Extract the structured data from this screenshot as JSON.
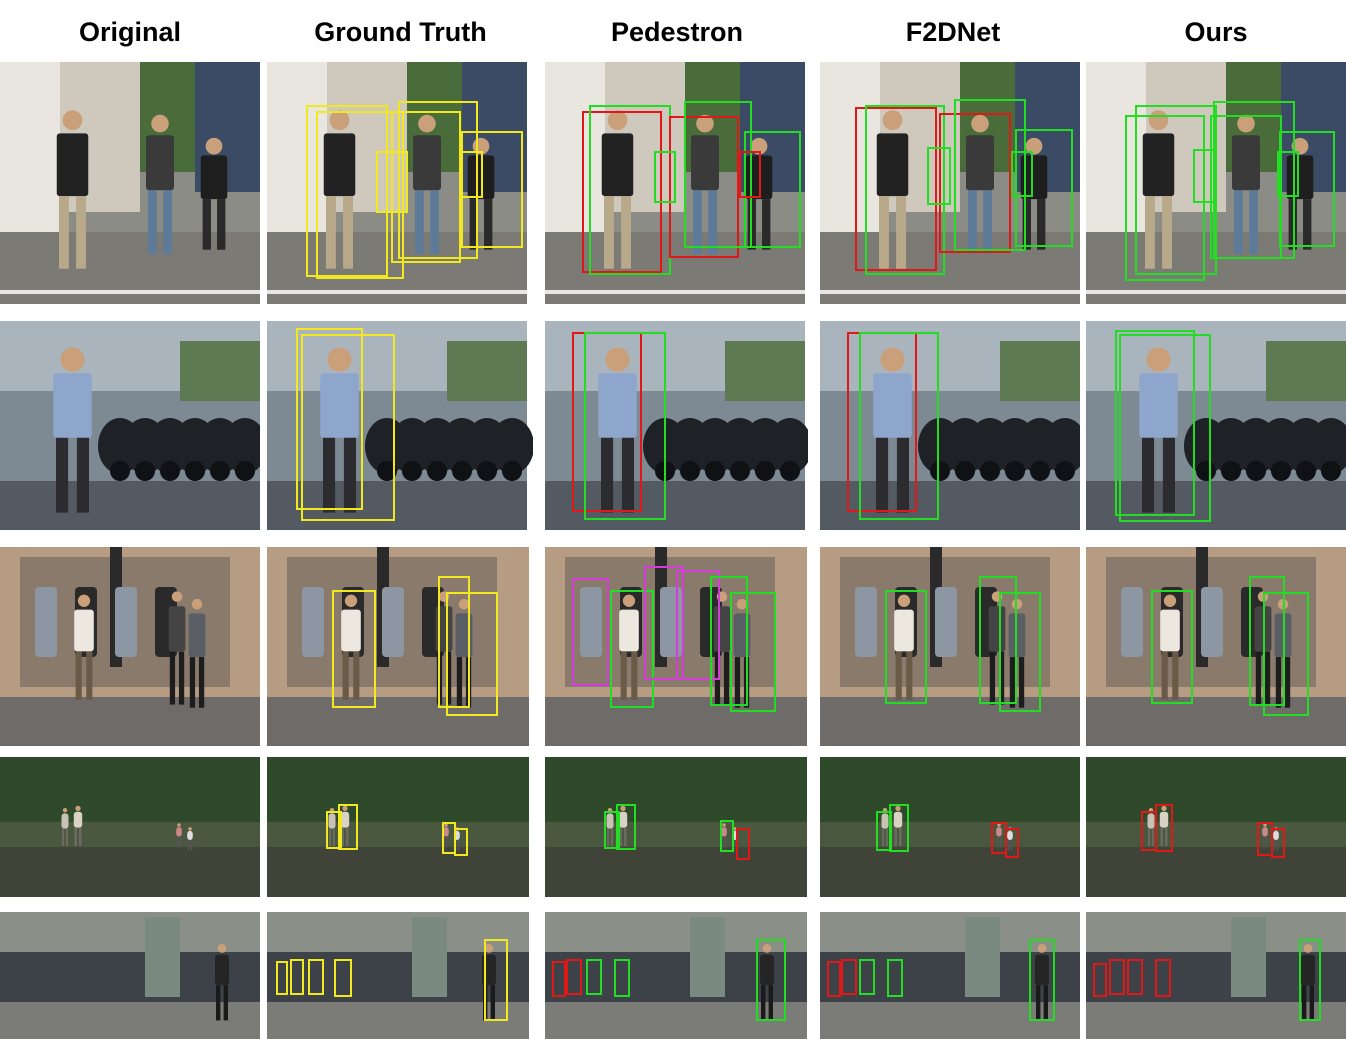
{
  "columns": [
    "Original",
    "Ground Truth",
    "Pedestron",
    "F2DNet",
    "Ours"
  ],
  "box_colors": {
    "ground_truth": "#f2e81f",
    "correct": "#22dd22",
    "wrong": "#e01818",
    "other": "#d53bd8"
  }
}
